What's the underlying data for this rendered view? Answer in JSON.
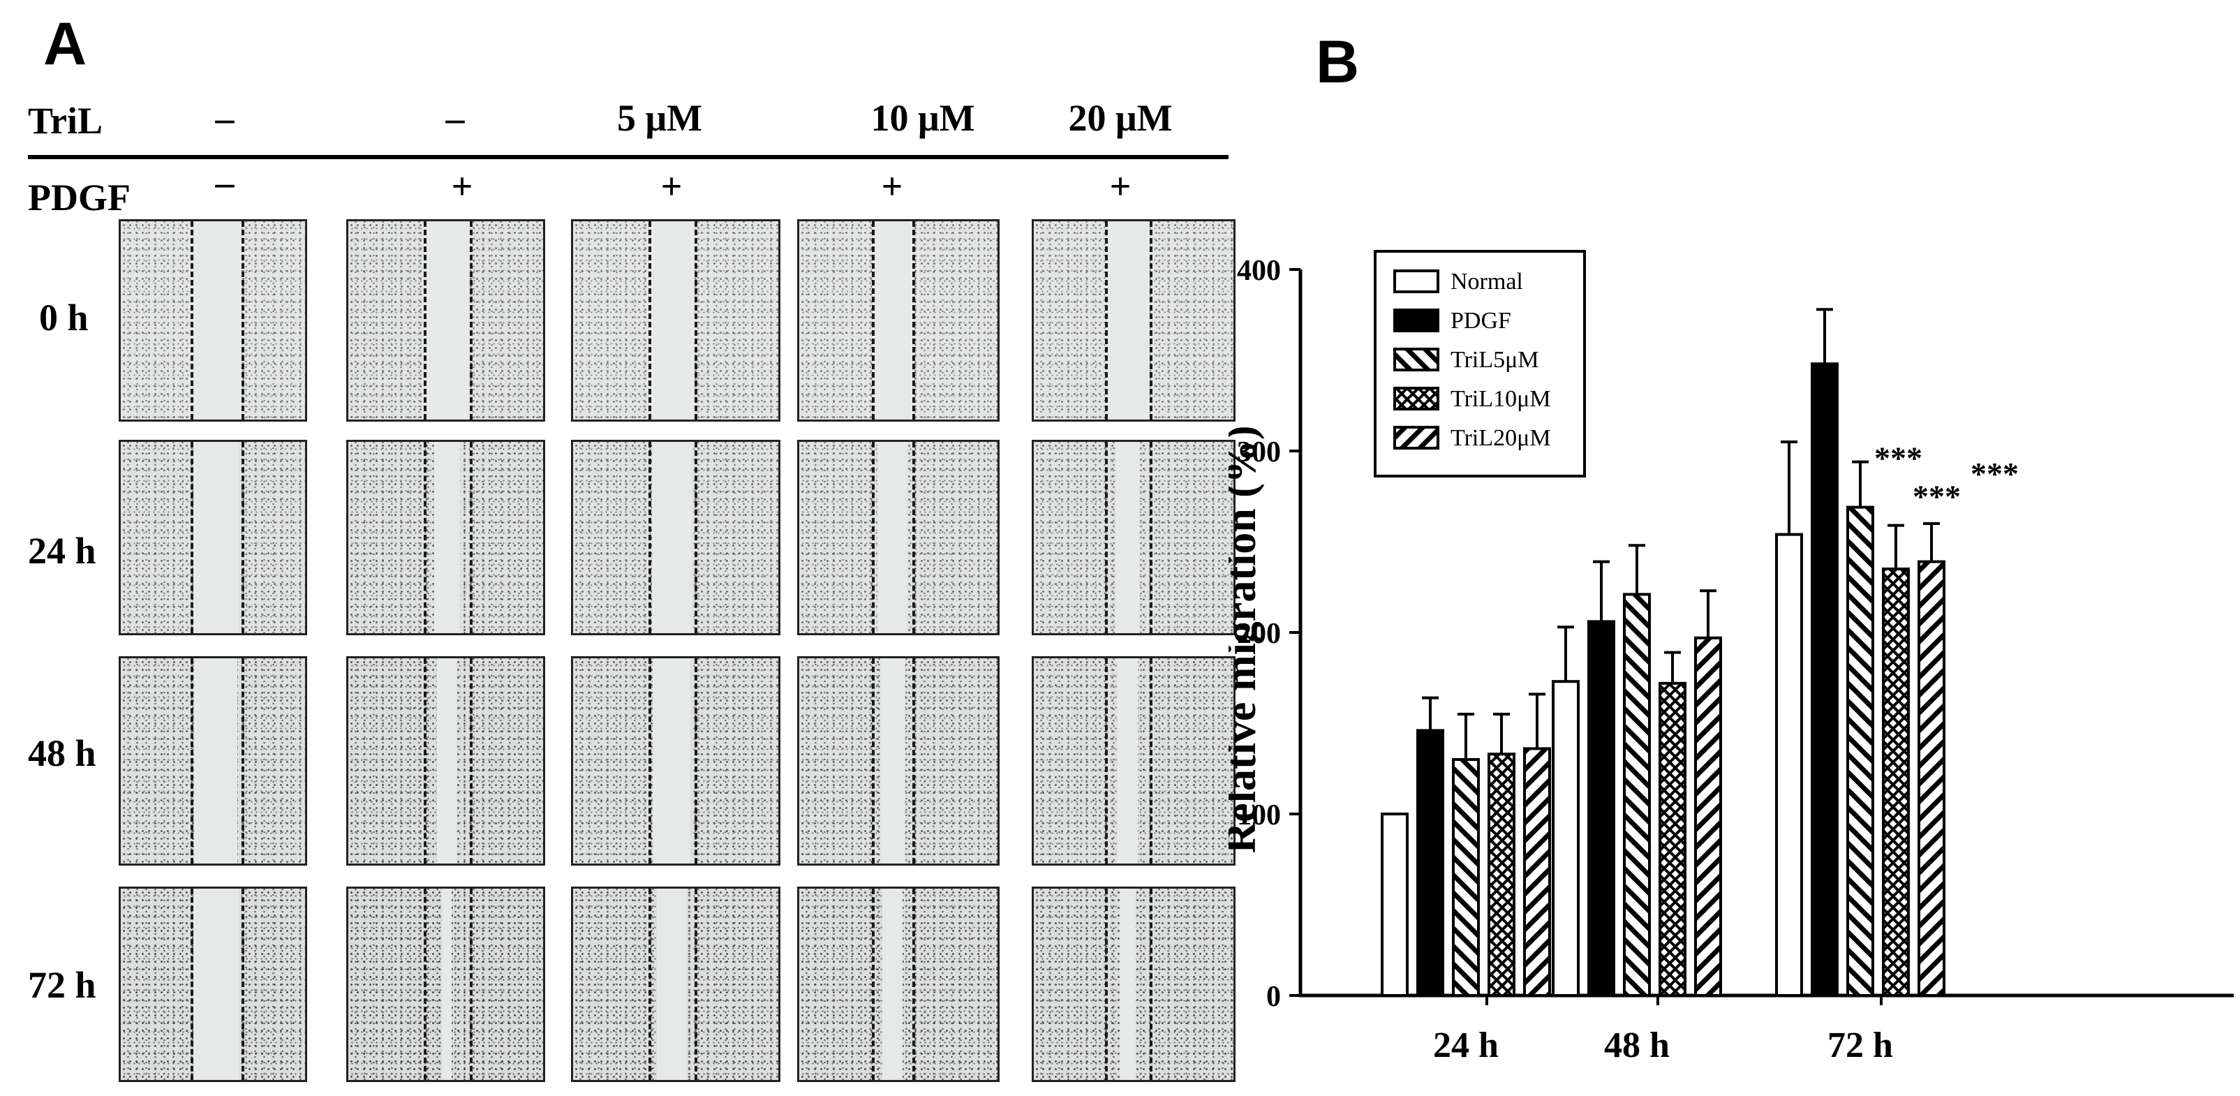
{
  "panel_a": {
    "letter": "A",
    "header": {
      "tril_label": "TriL",
      "pdgf_label": "PDGF",
      "columns": [
        {
          "tril": "–",
          "pdgf": "–"
        },
        {
          "tril": "–",
          "pdgf": "+"
        },
        {
          "tril": "5 μM",
          "pdgf": "+"
        },
        {
          "tril": "10 μM",
          "pdgf": "+"
        },
        {
          "tril": "20 μM",
          "pdgf": "+"
        }
      ]
    },
    "time_rows": [
      "0 h",
      "24 h",
      "48 h",
      "72 h"
    ]
  },
  "panel_b": {
    "letter": "B",
    "stars": "***"
  },
  "chart_data": {
    "type": "bar",
    "title": "",
    "xlabel": "",
    "ylabel": "Relative  migration  (%)",
    "ylim": [
      0,
      400
    ],
    "yticks": [
      "0",
      "100",
      "200",
      "300",
      "400"
    ],
    "categories": [
      "24 h",
      "48 h",
      "72 h"
    ],
    "grid": false,
    "legend_position": "top-left",
    "series": [
      {
        "name": "Normal",
        "pattern": "open",
        "values": [
          100,
          173,
          254
        ],
        "errors": [
          0,
          30,
          51
        ]
      },
      {
        "name": "PDGF",
        "pattern": "solid",
        "values": [
          146,
          206,
          348
        ],
        "errors": [
          18,
          33,
          30
        ]
      },
      {
        "name": "TriL5μM",
        "pattern": "hatch-diagonal",
        "values": [
          130,
          221,
          269
        ],
        "errors": [
          25,
          27,
          25
        ]
      },
      {
        "name": "TriL10μM",
        "pattern": "cross-hatch",
        "values": [
          133,
          172,
          235
        ],
        "errors": [
          22,
          17,
          24
        ]
      },
      {
        "name": "TriL20μM",
        "pattern": "hatch-back",
        "values": [
          136,
          197,
          239
        ],
        "errors": [
          30,
          26,
          21
        ]
      }
    ],
    "significance": [
      {
        "category": "72 h",
        "series": "TriL5μM",
        "label": "***"
      },
      {
        "category": "72 h",
        "series": "TriL10μM",
        "label": "***"
      },
      {
        "category": "72 h",
        "series": "TriL20μM",
        "label": "***"
      }
    ]
  }
}
